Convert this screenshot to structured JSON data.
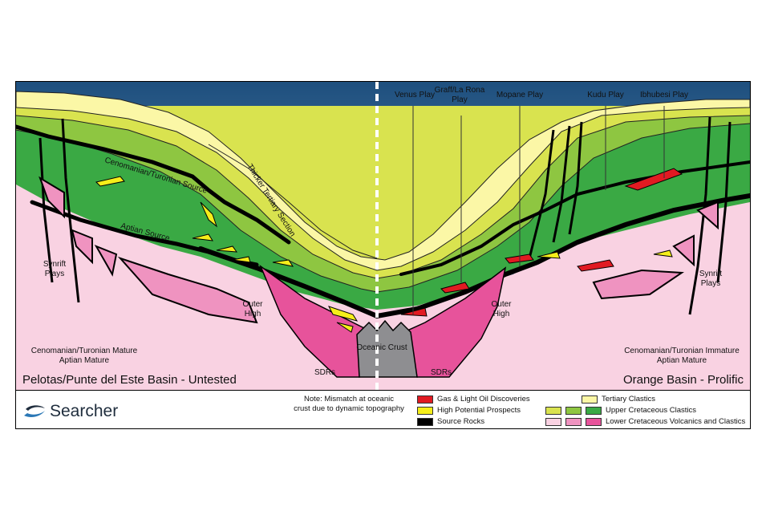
{
  "plays": {
    "venus": "Venus Play",
    "graff_1": "Graff/La Rona",
    "graff_2": "Play",
    "mopane": "Mopane Play",
    "kudu": "Kudu Play",
    "ibhubesi": "Ibhubesi Play"
  },
  "labels": {
    "cenomanian_source": "Cenomanian/Turonian Source",
    "aptian_source": "Aptian Source",
    "thicker_tertiary": "Thicker Tertiary Section",
    "synrift_left_1": "Synrift",
    "synrift_left_2": "Plays",
    "synrift_right_1": "Synrift",
    "synrift_right_2": "Plays",
    "outer_high_left_1": "Outer",
    "outer_high_left_2": "High",
    "outer_high_right_1": "Outer",
    "outer_high_right_2": "High",
    "oceanic_crust": "Oceanic Crust",
    "sdrs_left": "SDRs",
    "sdrs_right": "SDRs",
    "maturity_left_1": "Cenomanian/Turonian Mature",
    "maturity_left_2": "Aptian Mature",
    "maturity_right_1": "Cenomanian/Turonian Immature",
    "maturity_right_2": "Aptian Mature"
  },
  "basins": {
    "left": "Pelotas/Punte del Este Basin - Untested",
    "right": "Orange Basin - Prolific"
  },
  "brand": {
    "name": "Searcher"
  },
  "note": {
    "line1": "Note: Mismatch at oceanic",
    "line2": "crust due to dynamic topography"
  },
  "legend": {
    "gas": "Gas & Light Oil Discoveries",
    "prospects": "High Potential Prospects",
    "source": "Source Rocks",
    "tertiary": "Tertiary Clastics",
    "upper_cretaceous": "Upper Cretaceous Clastics",
    "lower_cretaceous": "Lower Cretaceous Volcanics and Clastics"
  },
  "colors": {
    "sea_top": "#1e4f7e",
    "sea_bottom": "#cfdde8",
    "tertiary": "#fbf7a6",
    "upper_cret_light": "#d9e34f",
    "upper_cret_mid": "#8ec641",
    "upper_cret_dark": "#3aa944",
    "lower_cret_pale": "#f9d2e2",
    "lower_cret_mid": "#ef93c0",
    "lower_cret_hot": "#e7539b",
    "source_rock": "#000000",
    "gas": "#e11a22",
    "prospect": "#f5ee1a",
    "crust": "#8e8e91"
  }
}
